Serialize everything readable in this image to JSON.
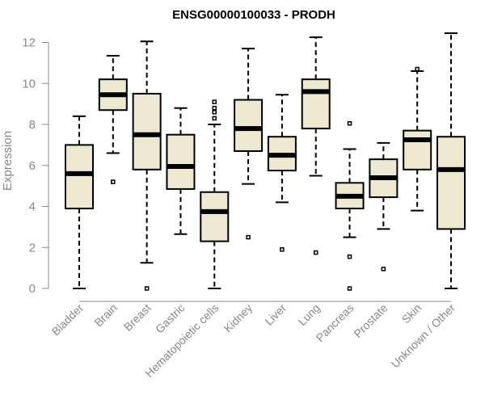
{
  "chart_data": {
    "type": "boxplot",
    "title": "ENSG00000100033 - PRODH",
    "ylabel": "Expression",
    "xlabel": "",
    "ylim": [
      0,
      12.5
    ],
    "yticks": [
      0,
      2,
      4,
      6,
      8,
      10,
      12
    ],
    "box_color": "#eee8d0",
    "categories": [
      "Bladder",
      "Brain",
      "Breast",
      "Gastric",
      "Hematopoietic cells",
      "Kidney",
      "Liver",
      "Lung",
      "Pancreas",
      "Prostate",
      "Skin",
      "Unknown / Other"
    ],
    "boxes": [
      {
        "min": 0.0,
        "q1": 3.9,
        "median": 5.6,
        "q3": 7.0,
        "max": 8.4,
        "outliers": []
      },
      {
        "min": 6.6,
        "q1": 8.7,
        "median": 9.45,
        "q3": 10.2,
        "max": 11.35,
        "outliers": [
          5.2
        ]
      },
      {
        "min": 1.25,
        "q1": 5.8,
        "median": 7.5,
        "q3": 9.5,
        "max": 12.05,
        "outliers": [
          0.0
        ]
      },
      {
        "min": 2.65,
        "q1": 4.85,
        "median": 5.95,
        "q3": 7.5,
        "max": 8.8,
        "outliers": []
      },
      {
        "min": 0.0,
        "q1": 2.3,
        "median": 3.75,
        "q3": 4.7,
        "max": 8.0,
        "outliers": [
          8.3,
          8.6,
          8.8,
          9.1
        ]
      },
      {
        "min": 5.1,
        "q1": 6.7,
        "median": 7.8,
        "q3": 9.2,
        "max": 11.7,
        "outliers": [
          2.5
        ]
      },
      {
        "min": 4.2,
        "q1": 5.75,
        "median": 6.5,
        "q3": 7.4,
        "max": 9.45,
        "outliers": [
          1.9
        ]
      },
      {
        "min": 5.5,
        "q1": 7.8,
        "median": 9.6,
        "q3": 10.2,
        "max": 12.25,
        "outliers": [
          1.75
        ]
      },
      {
        "min": 2.5,
        "q1": 3.9,
        "median": 4.5,
        "q3": 5.15,
        "max": 6.8,
        "outliers": [
          8.05,
          1.55,
          0.0
        ]
      },
      {
        "min": 2.9,
        "q1": 4.45,
        "median": 5.4,
        "q3": 6.3,
        "max": 7.1,
        "outliers": [
          0.95
        ]
      },
      {
        "min": 3.8,
        "q1": 5.8,
        "median": 7.25,
        "q3": 7.7,
        "max": 10.6,
        "outliers": [
          10.7
        ]
      },
      {
        "min": 0.0,
        "q1": 2.9,
        "median": 5.8,
        "q3": 7.4,
        "max": 12.45,
        "outliers": []
      }
    ]
  }
}
